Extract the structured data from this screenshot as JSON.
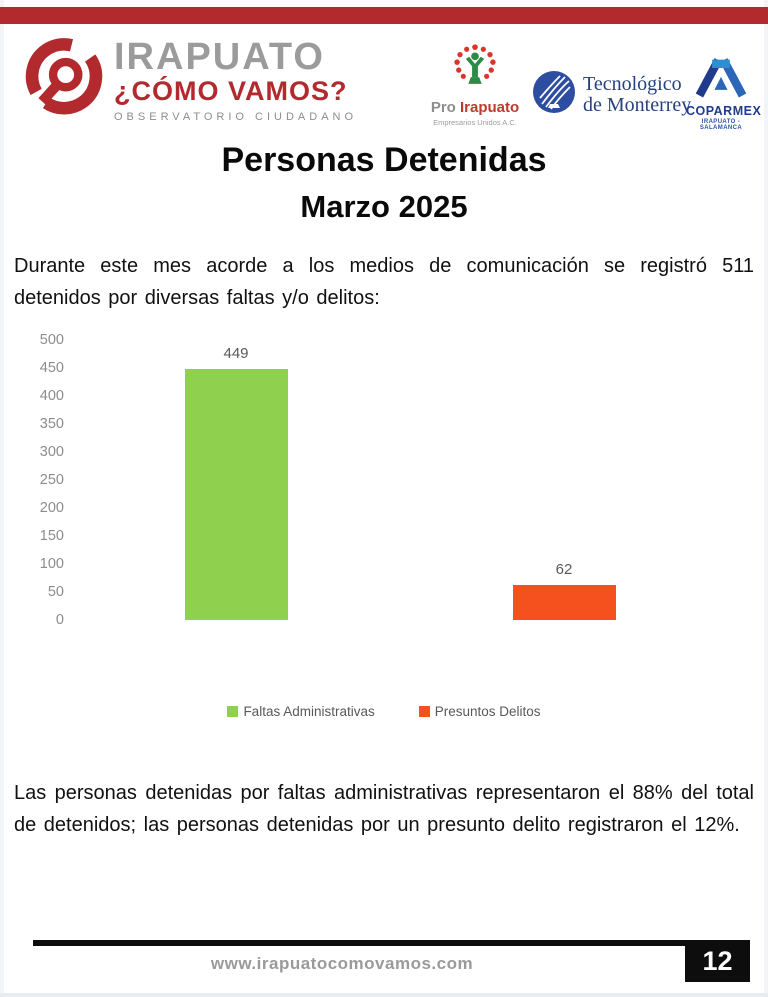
{
  "header": {
    "irapuato_logo": {
      "brand": "IRAPUATO",
      "question": "¿CÓMO VAMOS?",
      "tagline": "OBSERVATORIO CIUDADANO"
    },
    "pro_irapuato": {
      "prefix": "Pro",
      "name": "Irapuato",
      "tagline": "Empresarios Unidos A.C."
    },
    "tec_monterrey": {
      "line1": "Tecnológico",
      "line2": "de Monterrey"
    },
    "coparmex": {
      "name": "COPARMEX",
      "tagline": "IRAPUATO - SALAMANCA"
    }
  },
  "title": "Personas Detenidas",
  "subtitle": "Marzo 2025",
  "intro_paragraph": "Durante este mes acorde a los medios de comunicación se registró 511 detenidos por diversas faltas y/o delitos:",
  "chart_data": {
    "type": "bar",
    "categories": [
      "Faltas Administrativas",
      "Presuntos Delitos"
    ],
    "values": [
      449,
      62
    ],
    "colors": [
      "#8fd14f",
      "#f4511e"
    ],
    "title": "",
    "xlabel": "",
    "ylabel": "",
    "ylim": [
      0,
      500
    ],
    "ytick_step": 50,
    "grid": false,
    "legend_position": "bottom",
    "value_labels_shown": true
  },
  "conclusion_paragraph": "Las personas detenidas por faltas administrativas representaron el 88% del total de detenidos; las personas detenidas por un presunto delito registraron el 12%.",
  "footer": {
    "website": "www.irapuatocomovamos.com",
    "page_number": "12"
  },
  "colors": {
    "accent_red": "#b2292e",
    "bar_green": "#8fd14f",
    "bar_orange": "#f4511e",
    "axis_text": "#8c8c8c",
    "legend_text": "#595959"
  }
}
